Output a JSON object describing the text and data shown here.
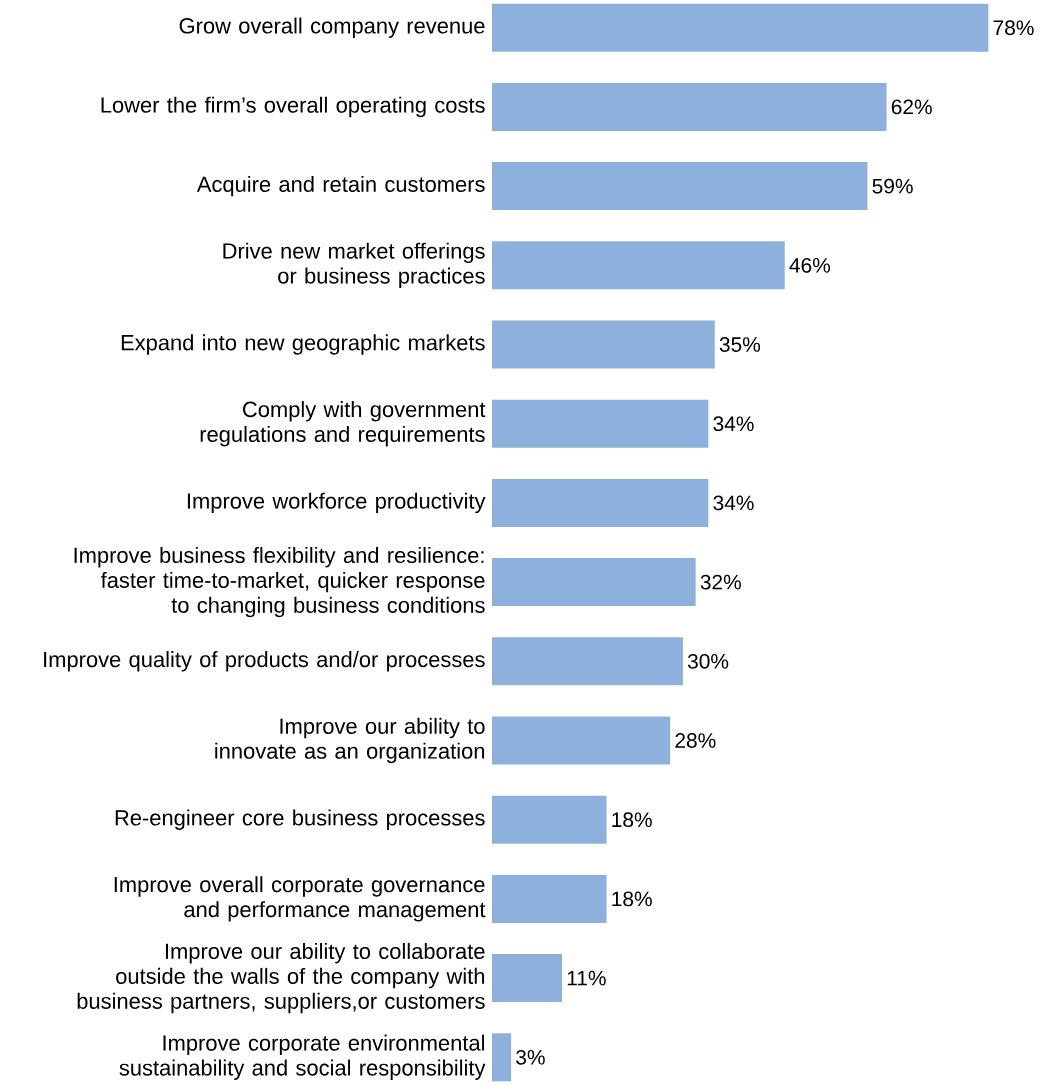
{
  "chart_data": {
    "type": "bar",
    "orientation": "horizontal",
    "tick_labels": "y",
    "color": "#8eb0dc",
    "categories": [
      "Grow overall company revenue",
      "Lower the firm’s overall operating costs",
      "Acquire and retain customers",
      "Drive new market offerings or business practices",
      "Expand into new geographic markets",
      "Comply with government regulations and requirements",
      "Improve workforce productivity",
      "Improve business flexibility and resilience: faster time-to-market, quicker response to changing business conditions",
      "Improve quality of products and/or processes",
      "Improve our ability to innovate as an organization",
      "Re-engineer core business processes",
      "Improve overall corporate governance and performance management",
      "Improve our ability to collaborate outside the walls of the company with business partners, suppliers,or customers",
      "Improve corporate environmental sustainability and social responsibility"
    ],
    "values": [
      78,
      62,
      59,
      46,
      35,
      34,
      34,
      32,
      30,
      28,
      18,
      18,
      11,
      3
    ],
    "value_labels": [
      "78%",
      "62%",
      "59%",
      "46%",
      "35%",
      "34%",
      "34%",
      "32%",
      "30%",
      "28%",
      "18%",
      "18%",
      "11%",
      "3%"
    ]
  }
}
